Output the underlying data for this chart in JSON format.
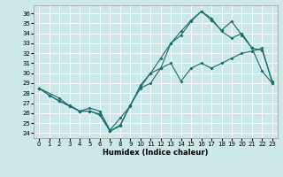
{
  "title": "",
  "xlabel": "Humidex (Indice chaleur)",
  "bg_color": "#cce8e8",
  "grid_color": "#ffffff",
  "line_color": "#1a6b6b",
  "xlim": [
    -0.5,
    23.5
  ],
  "ylim": [
    23.5,
    36.8
  ],
  "xticks": [
    0,
    1,
    2,
    3,
    4,
    5,
    6,
    7,
    8,
    9,
    10,
    11,
    12,
    13,
    14,
    15,
    16,
    17,
    18,
    19,
    20,
    21,
    22,
    23
  ],
  "yticks": [
    24,
    25,
    26,
    27,
    28,
    29,
    30,
    31,
    32,
    33,
    34,
    35,
    36
  ],
  "curve1_x": [
    0,
    1,
    2,
    3,
    4,
    5,
    6,
    7,
    8,
    9,
    10,
    11,
    12,
    13,
    14,
    15,
    16,
    17,
    18,
    19,
    20,
    21,
    22,
    23
  ],
  "curve1_y": [
    28.5,
    27.8,
    27.2,
    26.7,
    26.2,
    26.2,
    25.8,
    24.2,
    24.7,
    26.8,
    28.5,
    29.0,
    30.5,
    31.0,
    29.2,
    30.5,
    31.0,
    30.5,
    31.0,
    31.5,
    32.0,
    32.2,
    32.5,
    29.0
  ],
  "curve2_x": [
    0,
    1,
    2,
    3,
    4,
    5,
    6,
    7,
    8,
    9,
    10,
    11,
    12,
    13,
    14,
    15,
    16,
    17,
    18,
    19,
    20,
    21,
    22,
    23
  ],
  "curve2_y": [
    28.5,
    27.8,
    27.2,
    26.8,
    26.2,
    26.2,
    25.9,
    24.2,
    24.8,
    26.8,
    28.6,
    30.0,
    30.5,
    33.0,
    33.8,
    35.2,
    36.2,
    35.3,
    34.3,
    35.2,
    33.8,
    32.5,
    30.2,
    29.0
  ],
  "curve3_x": [
    0,
    2,
    3,
    4,
    5,
    6,
    7,
    8,
    9,
    10,
    11,
    12,
    13,
    14,
    15,
    16,
    17,
    18,
    19,
    20,
    21,
    22,
    23
  ],
  "curve3_y": [
    28.5,
    27.5,
    26.7,
    26.2,
    26.5,
    26.2,
    24.3,
    25.5,
    26.7,
    28.8,
    30.0,
    31.5,
    33.0,
    34.2,
    35.3,
    36.2,
    35.5,
    34.2,
    33.5,
    34.0,
    32.5,
    32.3,
    29.2
  ],
  "tick_fontsize": 5.0,
  "xlabel_fontsize": 6.0,
  "lw": 0.8,
  "ms": 2.0
}
